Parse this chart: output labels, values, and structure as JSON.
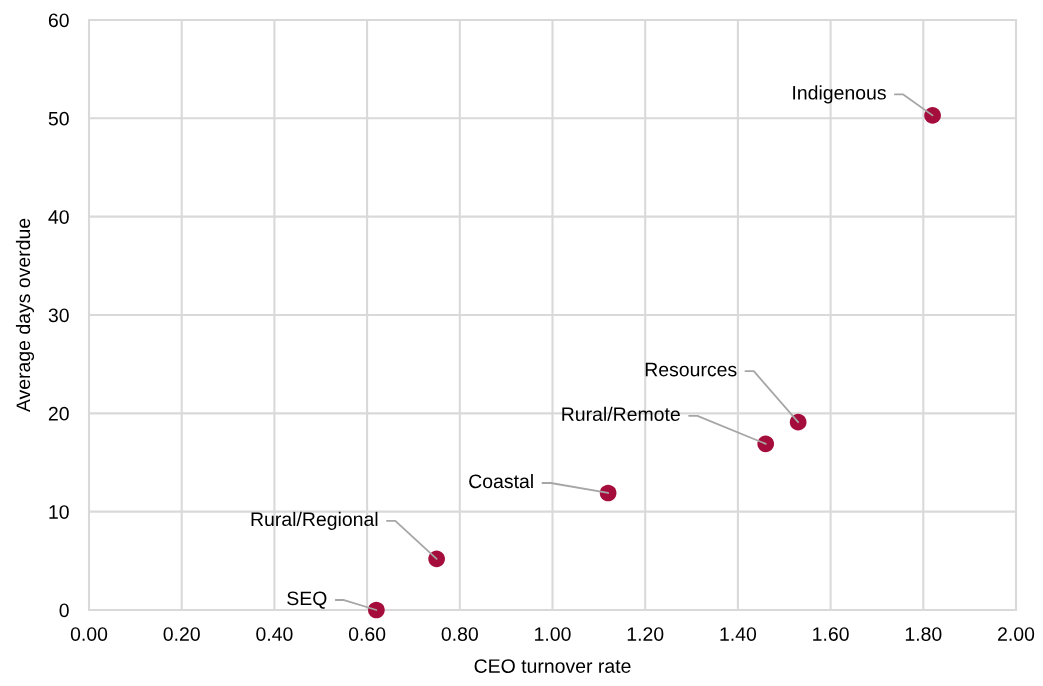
{
  "chart_data": {
    "type": "scatter",
    "xlabel": "CEO turnover rate",
    "ylabel": "Average days overdue",
    "x": [
      0.62,
      0.75,
      1.12,
      1.46,
      1.53,
      1.82
    ],
    "values": [
      0,
      5.2,
      11.9,
      16.9,
      19.1,
      50.3
    ],
    "color": "#a50d3c",
    "marker": "circle",
    "xlim": [
      0,
      2
    ],
    "ylim": [
      0,
      60
    ],
    "xticks": [
      {
        "value": 0,
        "label": "0.00"
      },
      {
        "value": 0.2,
        "label": "0.20"
      },
      {
        "value": 0.4,
        "label": "0.40"
      },
      {
        "value": 0.6,
        "label": "0.60"
      },
      {
        "value": 0.8,
        "label": "0.80"
      },
      {
        "value": 1.0,
        "label": "1.00"
      },
      {
        "value": 1.2,
        "label": "1.20"
      },
      {
        "value": 1.4,
        "label": "1.40"
      },
      {
        "value": 1.6,
        "label": "1.60"
      },
      {
        "value": 1.8,
        "label": "1.80"
      },
      {
        "value": 2.0,
        "label": "2.00"
      }
    ],
    "yticks": [
      0,
      10,
      20,
      30,
      40,
      50,
      60
    ],
    "grid": true,
    "annotations": [
      {
        "text": "SEQ",
        "x": 0.62,
        "y": 0
      },
      {
        "text": "Rural/Regional",
        "x": 0.75,
        "y": 5.2
      },
      {
        "text": "Coastal",
        "x": 1.12,
        "y": 11.9
      },
      {
        "text": "Rural/Remote",
        "x": 1.46,
        "y": 16.9
      },
      {
        "text": "Resources",
        "x": 1.53,
        "y": 19.1
      },
      {
        "text": "Indigenous",
        "x": 1.82,
        "y": 50.3
      }
    ]
  }
}
